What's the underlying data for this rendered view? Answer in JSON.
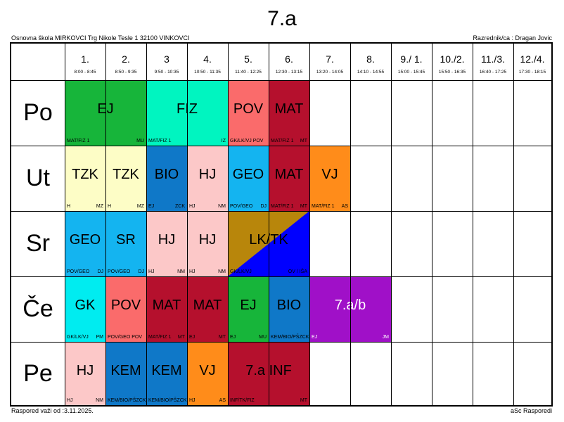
{
  "header": {
    "title": "7.a",
    "school": "Osnovna škola MIRKOVCI Trg Nikole Tesle 1 32100 VINKOVCI",
    "teacher": "Razrednik/ca : Dragan Jovic"
  },
  "footer": {
    "valid_from": "Raspored važi od :3.11.2025.",
    "brand": "aSc Rasporedi"
  },
  "periods": [
    {
      "num": "1.",
      "time": "8:00 - 8:45"
    },
    {
      "num": "2.",
      "time": "8:50 - 9:35"
    },
    {
      "num": "3",
      "time": "9:50 - 10:35"
    },
    {
      "num": "4.",
      "time": "10:50 - 11:35"
    },
    {
      "num": "5.",
      "time": "11:40 - 12:25"
    },
    {
      "num": "6.",
      "time": "12:30 - 13:15"
    },
    {
      "num": "7.",
      "time": "13:20 - 14:05"
    },
    {
      "num": "8.",
      "time": "14:10 - 14:55"
    },
    {
      "num": "9./ 1.",
      "time": "15:00 - 15:45"
    },
    {
      "num": "10./2.",
      "time": "15:50 - 16:35"
    },
    {
      "num": "11./3.",
      "time": "16:40 - 17:25"
    },
    {
      "num": "12./4.",
      "time": "17:30 - 18:15"
    }
  ],
  "days": [
    "Po",
    "Ut",
    "Sr",
    "Če",
    "Pe"
  ],
  "lessons": [
    {
      "day": 0,
      "start": 0,
      "span": 2,
      "subject": "EJ",
      "group": "MAT/FIZ 1",
      "teacher": "MU",
      "color": "#17b53a"
    },
    {
      "day": 0,
      "start": 2,
      "span": 2,
      "subject": "FIZ",
      "group": "MAT/FIZ 1",
      "teacher": "IZ",
      "color": "#00f5c0"
    },
    {
      "day": 0,
      "start": 4,
      "span": 1,
      "subject": "POV",
      "group": "GK/LK/VJ POV",
      "teacher": "",
      "color": "#fa6b6b"
    },
    {
      "day": 0,
      "start": 5,
      "span": 1,
      "subject": "MAT",
      "group": "MAT/FIZ 1",
      "teacher": "MT",
      "color": "#b5102d"
    },
    {
      "day": 1,
      "start": 0,
      "span": 1,
      "subject": "TZK",
      "group": "H",
      "teacher": "MZ",
      "color": "#fdfdc6"
    },
    {
      "day": 1,
      "start": 1,
      "span": 1,
      "subject": "TZK",
      "group": "H",
      "teacher": "MZ",
      "color": "#fdfdc6"
    },
    {
      "day": 1,
      "start": 2,
      "span": 1,
      "subject": "BIO",
      "group": "EJ",
      "teacher": "ZCK",
      "color": "#0f78c8"
    },
    {
      "day": 1,
      "start": 3,
      "span": 1,
      "subject": "HJ",
      "group": "HJ",
      "teacher": "NM",
      "color": "#fcc8c8"
    },
    {
      "day": 1,
      "start": 4,
      "span": 1,
      "subject": "GEO",
      "group": "POV/GEO",
      "teacher": "DJ",
      "color": "#14b4f0"
    },
    {
      "day": 1,
      "start": 5,
      "span": 1,
      "subject": "MAT",
      "group": "MAT/FIZ 1",
      "teacher": "MT",
      "color": "#b5102d"
    },
    {
      "day": 1,
      "start": 6,
      "span": 1,
      "subject": "VJ",
      "group": "MAT/FIZ 1",
      "teacher": "AS",
      "color": "#ff8c1a"
    },
    {
      "day": 2,
      "start": 0,
      "span": 1,
      "subject": "GEO",
      "group": "POV/GEO",
      "teacher": "DJ",
      "color": "#14b4f0"
    },
    {
      "day": 2,
      "start": 1,
      "span": 1,
      "subject": "SR",
      "group": "POV/GEO",
      "teacher": "DJ",
      "color": "#14b4f0"
    },
    {
      "day": 2,
      "start": 2,
      "span": 1,
      "subject": "HJ",
      "group": "HJ",
      "teacher": "NM",
      "color": "#fcc8c8"
    },
    {
      "day": 2,
      "start": 3,
      "span": 1,
      "subject": "HJ",
      "group": "HJ",
      "teacher": "NM",
      "color": "#fcc8c8"
    },
    {
      "day": 2,
      "start": 4,
      "span": 2,
      "subject": "LK/TK",
      "group": "GK/LK/VJ",
      "teacher": "OV / IŠA",
      "color": "#b8860b",
      "split_color": "#0000ff"
    },
    {
      "day": 3,
      "start": 0,
      "span": 1,
      "subject": "GK",
      "group": "GK/LK/VJ",
      "teacher": "PM",
      "color": "#00ecf0"
    },
    {
      "day": 3,
      "start": 1,
      "span": 1,
      "subject": "POV",
      "group": "POV/GEO POV",
      "teacher": "",
      "color": "#fa6b6b"
    },
    {
      "day": 3,
      "start": 2,
      "span": 1,
      "subject": "MAT",
      "group": "MAT/FIZ 1",
      "teacher": "MT",
      "color": "#b5102d"
    },
    {
      "day": 3,
      "start": 3,
      "span": 1,
      "subject": "MAT",
      "group": "EJ",
      "teacher": "MT",
      "color": "#b5102d"
    },
    {
      "day": 3,
      "start": 4,
      "span": 1,
      "subject": "EJ",
      "group": "EJ",
      "teacher": "MU",
      "color": "#17b53a"
    },
    {
      "day": 3,
      "start": 5,
      "span": 1,
      "subject": "BIO",
      "group": "KEM/BIO/PŠZCK",
      "teacher": "",
      "color": "#0f78c8"
    },
    {
      "day": 3,
      "start": 6,
      "span": 2,
      "subject": "7.a/b",
      "group": "EJ",
      "teacher": "JM",
      "color": "#a010c8",
      "text_white": true
    },
    {
      "day": 4,
      "start": 0,
      "span": 1,
      "subject": "HJ",
      "group": "HJ",
      "teacher": "NM",
      "color": "#fcc8c8"
    },
    {
      "day": 4,
      "start": 1,
      "span": 1,
      "subject": "KEM",
      "group": "KEM/BIO/PŠZCK",
      "teacher": "",
      "color": "#0f78c8"
    },
    {
      "day": 4,
      "start": 2,
      "span": 1,
      "subject": "KEM",
      "group": "KEM/BIO/PŠZCK",
      "teacher": "",
      "color": "#0f78c8"
    },
    {
      "day": 4,
      "start": 3,
      "span": 1,
      "subject": "VJ",
      "group": "HJ",
      "teacher": "AS",
      "color": "#ff8c1a"
    },
    {
      "day": 4,
      "start": 4,
      "span": 2,
      "subject": "7.a INF",
      "group": "INF/TK/FIZ",
      "teacher": "MT",
      "color": "#b5102d"
    }
  ]
}
